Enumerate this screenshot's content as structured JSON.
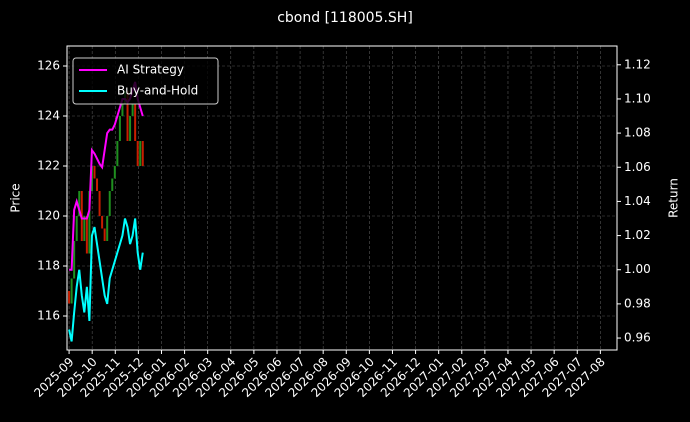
{
  "chart_data": {
    "type": "candlestick",
    "title": "cbond [118005.SH]",
    "ylabel": "Price",
    "y2label": "Return",
    "x": [
      0,
      0.11,
      0.22,
      0.33,
      0.44,
      0.55,
      0.66,
      0.77,
      0.88,
      0.99,
      1.1,
      1.21,
      1.32,
      1.43,
      1.54,
      1.65,
      1.76,
      1.87,
      1.98,
      2.09,
      2.2,
      2.31,
      2.42,
      2.53,
      2.64,
      2.75,
      2.86,
      2.97,
      3.08,
      3.19
    ],
    "open": [
      117,
      116.5,
      117.5,
      119,
      120,
      121,
      119,
      120,
      118.5,
      121,
      122,
      121.5,
      121,
      120,
      119.5,
      119,
      120,
      121,
      121.5,
      122,
      123,
      124,
      124.5,
      125,
      123,
      124,
      124.5,
      123,
      122,
      123
    ],
    "close": [
      116.5,
      117.5,
      119,
      120,
      121,
      119,
      120,
      118.5,
      121,
      122,
      121.5,
      121,
      120,
      119.5,
      119,
      120,
      121,
      121.5,
      122,
      123,
      124,
      124.5,
      125,
      123,
      124,
      124.5,
      123,
      122,
      123,
      122
    ],
    "up_color": "#1f8f1f",
    "down_color": "#c81e00",
    "series": [
      {
        "name": "AI Strategy",
        "color": "#ff00ff",
        "axis": "y2",
        "values": [
          1.0,
          1.0,
          1.035,
          1.04,
          1.035,
          1.03,
          1.03,
          1.03,
          1.035,
          1.07,
          1.068,
          1.065,
          1.062,
          1.06,
          1.07,
          1.08,
          1.082,
          1.082,
          1.085,
          1.09,
          1.095,
          1.1,
          1.1,
          1.098,
          1.1,
          1.105,
          1.11,
          1.1,
          1.095,
          1.09
        ]
      },
      {
        "name": "Buy-and-Hold",
        "color": "#00ffff",
        "axis": "y2",
        "values": [
          0.965,
          0.958,
          0.975,
          0.99,
          1.0,
          0.985,
          0.975,
          0.99,
          0.97,
          1.02,
          1.025,
          1.015,
          1.005,
          0.995,
          0.985,
          0.98,
          0.995,
          1.0,
          1.005,
          1.01,
          1.015,
          1.02,
          1.03,
          1.025,
          1.015,
          1.02,
          1.03,
          1.01,
          1.0,
          1.01
        ]
      }
    ],
    "xlim": [
      -0.09,
      23.72
    ],
    "xticks": [
      {
        "value": 0,
        "label": "2025-09"
      },
      {
        "value": 1,
        "label": "2025-10"
      },
      {
        "value": 2,
        "label": "2025-11"
      },
      {
        "value": 3,
        "label": "2025-12"
      },
      {
        "value": 4,
        "label": "2026-01"
      },
      {
        "value": 5,
        "label": "2026-02"
      },
      {
        "value": 6,
        "label": "2026-03"
      },
      {
        "value": 7,
        "label": "2026-04"
      },
      {
        "value": 8,
        "label": "2026-05"
      },
      {
        "value": 9,
        "label": "2026-06"
      },
      {
        "value": 10,
        "label": "2026-07"
      },
      {
        "value": 11,
        "label": "2026-08"
      },
      {
        "value": 12,
        "label": "2026-09"
      },
      {
        "value": 13,
        "label": "2026-10"
      },
      {
        "value": 14,
        "label": "2026-11"
      },
      {
        "value": 15,
        "label": "2026-12"
      },
      {
        "value": 16,
        "label": "2027-01"
      },
      {
        "value": 17,
        "label": "2027-02"
      },
      {
        "value": 18,
        "label": "2027-03"
      },
      {
        "value": 19,
        "label": "2027-04"
      },
      {
        "value": 20,
        "label": "2027-05"
      },
      {
        "value": 21,
        "label": "2027-06"
      },
      {
        "value": 22,
        "label": "2027-07"
      },
      {
        "value": 23,
        "label": "2027-08"
      }
    ],
    "ylim": [
      114.64,
      126.8
    ],
    "yticks": [
      116,
      118,
      120,
      122,
      124,
      126
    ],
    "y2lim": [
      0.953,
      1.131
    ],
    "y2ticks": [
      0.96,
      0.98,
      {
        "value": 1,
        "label": "1.00"
      },
      1.02,
      1.04,
      1.06,
      1.08,
      {
        "value": 1.1,
        "label": "1.10"
      },
      1.12
    ],
    "grid": true,
    "legend": "upper left"
  }
}
